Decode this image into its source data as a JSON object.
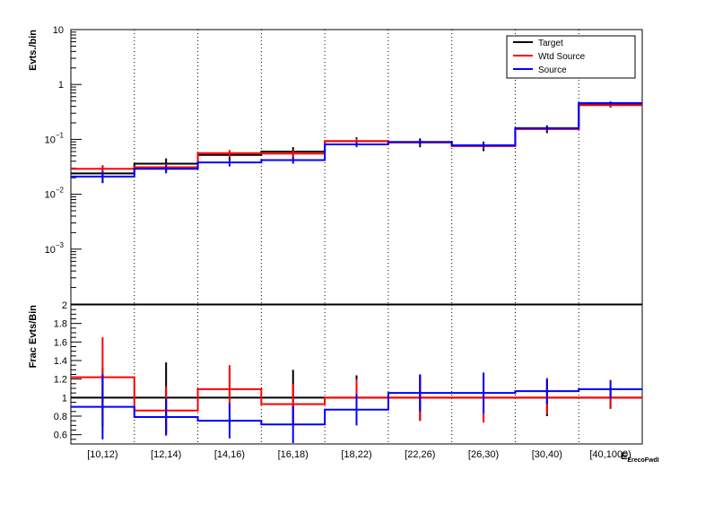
{
  "chart_data": [
    {
      "type": "step",
      "ylabel": "Evts./bin",
      "yscale": "log",
      "ylim": [
        0.0001,
        10
      ],
      "categories": [
        "[10,12)",
        "[12,14)",
        "[14,16)",
        "[16,18)",
        "[18,22)",
        "[22,26)",
        "[26,30)",
        "[30,40)",
        "[40,1000)"
      ],
      "y_ticks": [
        {
          "value": 10,
          "base": "10",
          "exp": ""
        },
        {
          "value": 1,
          "base": "1",
          "exp": ""
        },
        {
          "value": 0.1,
          "base": "10",
          "exp": "−1"
        },
        {
          "value": 0.01,
          "base": "10",
          "exp": "−2"
        },
        {
          "value": 0.001,
          "base": "10",
          "exp": "−3"
        }
      ],
      "series": [
        {
          "name": "Target",
          "color": "#000000",
          "values": [
            0.024,
            0.036,
            0.052,
            0.06,
            0.093,
            0.088,
            0.076,
            0.155,
            0.43
          ],
          "errors_up": [
            0.008,
            0.009,
            0.011,
            0.012,
            0.016,
            0.016,
            0.015,
            0.025,
            0.05
          ]
        },
        {
          "name": "Wtd Source",
          "color": "#ff0000",
          "values": [
            0.029,
            0.031,
            0.056,
            0.055,
            0.093,
            0.088,
            0.076,
            0.155,
            0.42
          ],
          "errors_up": [
            0.005,
            0.005,
            0.008,
            0.008,
            0.01,
            0.01,
            0.009,
            0.015,
            0.03
          ]
        },
        {
          "name": "Source",
          "color": "#0000ff",
          "values": [
            0.021,
            0.029,
            0.038,
            0.042,
            0.081,
            0.09,
            0.078,
            0.16,
            0.46
          ],
          "errors_up": [
            0.005,
            0.005,
            0.006,
            0.006,
            0.009,
            0.01,
            0.009,
            0.015,
            0.03
          ]
        }
      ]
    },
    {
      "type": "step",
      "ylabel": "Frac Evts/Bin",
      "xlabel": "E",
      "xlabel_sub": "ErecoFwdI",
      "ylim": [
        0.5,
        2
      ],
      "y_ticks": [
        "0.6",
        "0.8",
        "1",
        "1.2",
        "1.4",
        "1.6",
        "1.8",
        "2"
      ],
      "categories": [
        "[10,12)",
        "[12,14)",
        "[14,16)",
        "[16,18)",
        "[18,22)",
        "[22,26)",
        "[26,30)",
        "[30,40)",
        "[40,1000)"
      ],
      "series": [
        {
          "name": "Target",
          "color": "#000000",
          "values": [
            1,
            1,
            1,
            1,
            1,
            1,
            1,
            1,
            1
          ],
          "errors": [
            0.32,
            0.38,
            0.32,
            0.3,
            0.24,
            0.25,
            0.25,
            0.2,
            0.12
          ]
        },
        {
          "name": "Wtd Source",
          "color": "#ff0000",
          "values": [
            1.22,
            0.86,
            1.09,
            0.93,
            1.0,
            1.0,
            1.0,
            1.0,
            1.0
          ],
          "errors": [
            0.43,
            0.26,
            0.26,
            0.22,
            0.2,
            0.25,
            0.27,
            0.18,
            0.11
          ]
        },
        {
          "name": "Source",
          "color": "#0000ff",
          "values": [
            0.9,
            0.79,
            0.75,
            0.71,
            0.87,
            1.05,
            1.05,
            1.07,
            1.09
          ],
          "errors": [
            0.35,
            0.2,
            0.19,
            0.2,
            0.17,
            0.2,
            0.22,
            0.14,
            0.1
          ]
        }
      ]
    }
  ],
  "legend": {
    "placement": "top-right",
    "entries": [
      "Target",
      "Wtd Source",
      "Source"
    ]
  }
}
